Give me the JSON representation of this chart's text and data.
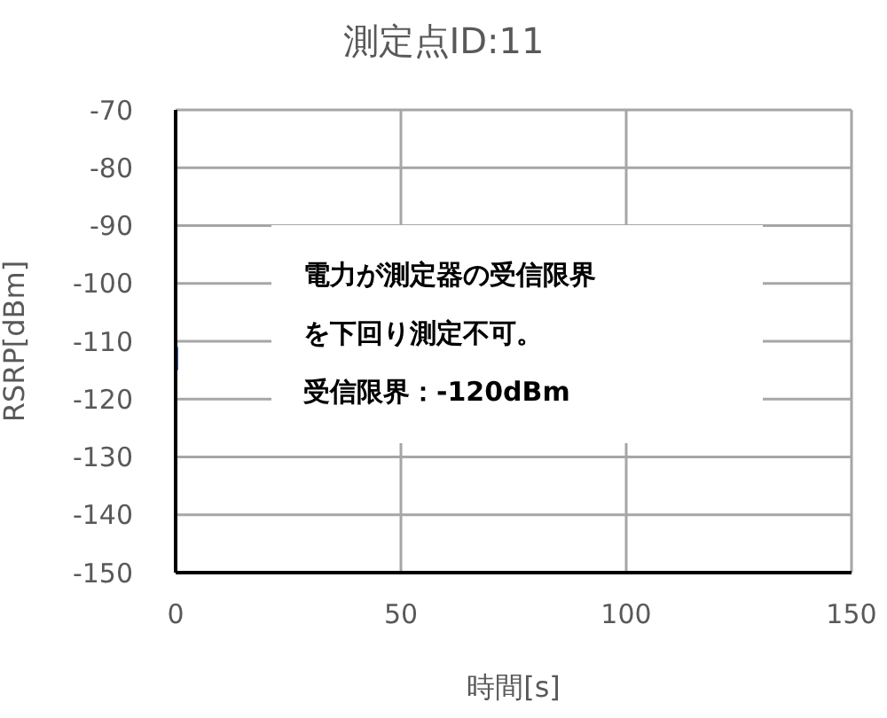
{
  "chart_data": {
    "type": "line",
    "title": "測定点ID:11",
    "xlabel": "時間[s]",
    "ylabel": "RSRP[dBm]",
    "xlim": [
      0,
      150
    ],
    "xticks": [
      0,
      50,
      100,
      150
    ],
    "ylim": [
      -150,
      -70
    ],
    "yticks": [
      -150,
      -140,
      -130,
      -120,
      -110,
      -100,
      -90,
      -80,
      -70
    ],
    "grid": true,
    "marker": "none",
    "line_style": "solid",
    "series": [
      {
        "color": "#4472c4",
        "x": [
          0,
          0
        ],
        "values": [
          -111,
          -115
        ]
      }
    ],
    "annotations": [
      "電力が測定器の受信限界を下回り測定不可。",
      "受信限界：-120dBm"
    ]
  }
}
